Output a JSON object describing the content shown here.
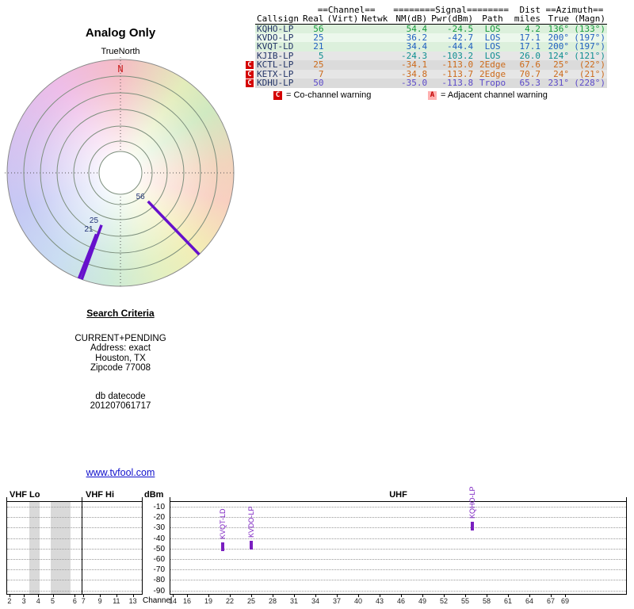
{
  "title": "Analog Only",
  "radar": {
    "true_north_label": "TrueNorth",
    "north_marker": "N",
    "spoke_color": "#6610cc",
    "label_color": "#223377",
    "spokes": [
      {
        "channel": "56",
        "azimuth_deg": 136,
        "inner_r": 50,
        "outer_r": 143
      },
      {
        "channel": "25",
        "azimuth_deg": 200,
        "inner_r": 70,
        "outer_r": 143
      },
      {
        "channel": "21",
        "azimuth_deg": 201.5,
        "inner_r": 83,
        "outer_r": 143
      }
    ]
  },
  "table": {
    "group_channel": "==Channel==",
    "group_signal": "========Signal========",
    "group_dist": "Dist",
    "group_azimuth": "==Azimuth==",
    "columns": [
      "Callsign",
      "Real",
      "(Virt)",
      "Netwk",
      "NM(dB)",
      "Pwr(dBm)",
      "Path",
      "miles",
      "True",
      "(Magn)"
    ],
    "rows": [
      {
        "callsign": "KQHO-LP",
        "real": "56",
        "virt": "",
        "netwk": "",
        "nm": "54.4",
        "pwr": "-24.5",
        "path": "LOS",
        "miles": "4.2",
        "true": "136°",
        "magn": "(133°)",
        "color": "#169a3c",
        "bg": "#dcf0dc",
        "marker": ""
      },
      {
        "callsign": "KVDO-LP",
        "real": "25",
        "virt": "",
        "netwk": "",
        "nm": "36.2",
        "pwr": "-42.7",
        "path": "LOS",
        "miles": "17.1",
        "true": "200°",
        "magn": "(197°)",
        "color": "#2060c0",
        "bg": "#ecf8ec",
        "marker": ""
      },
      {
        "callsign": "KVQT-LD",
        "real": "21",
        "virt": "",
        "netwk": "",
        "nm": "34.4",
        "pwr": "-44.4",
        "path": "LOS",
        "miles": "17.1",
        "true": "200°",
        "magn": "(197°)",
        "color": "#2060c0",
        "bg": "#dcf0dc",
        "marker": ""
      },
      {
        "callsign": "KJIB-LP",
        "real": "5",
        "virt": "",
        "netwk": "",
        "nm": "-24.3",
        "pwr": "-103.2",
        "path": "LOS",
        "miles": "26.0",
        "true": "124°",
        "magn": "(121°)",
        "color": "#0d8f8f",
        "bg": "#e6e6e6",
        "marker": ""
      },
      {
        "callsign": "KCTL-LP",
        "real": "25",
        "virt": "",
        "netwk": "",
        "nm": "-34.1",
        "pwr": "-113.0",
        "path": "2Edge",
        "miles": "67.6",
        "true": "25°",
        "magn": "(22°)",
        "color": "#cc6a1a",
        "bg": "#dbdbdb",
        "marker": "C"
      },
      {
        "callsign": "KETX-LP",
        "real": "7",
        "virt": "",
        "netwk": "",
        "nm": "-34.8",
        "pwr": "-113.7",
        "path": "2Edge",
        "miles": "70.7",
        "true": "24°",
        "magn": "(21°)",
        "color": "#cc6a1a",
        "bg": "#e6e6e6",
        "marker": "C"
      },
      {
        "callsign": "KDHU-LP",
        "real": "50",
        "virt": "",
        "netwk": "",
        "nm": "-35.0",
        "pwr": "-113.8",
        "path": "Tropo",
        "miles": "65.3",
        "true": "231°",
        "magn": "(228°)",
        "color": "#5b49c9",
        "bg": "#dbdbdb",
        "marker": "C"
      }
    ],
    "legend_co_symbol": "C",
    "legend_co_text": "= Co-channel warning",
    "legend_adj_symbol": "A",
    "legend_adj_text": "= Adjacent channel warning"
  },
  "search": {
    "heading": "Search Criteria",
    "lines": [
      "CURRENT+PENDING",
      "Address: exact",
      "Houston, TX",
      "Zipcode 77008"
    ],
    "db_label": "db datecode",
    "db_value": "201207061717"
  },
  "link_text": "www.tvfool.com",
  "chart_data": {
    "type": "scatter",
    "title": "Analog TV signal spectrum",
    "xlabel": "Channel",
    "ylabel": "dBm",
    "ylim": [
      -95,
      -5
    ],
    "yticks": [
      -10,
      -20,
      -30,
      -40,
      -50,
      -60,
      -70,
      -80,
      -90
    ],
    "grid": true,
    "bands": [
      {
        "name": "VHF Lo",
        "channels": [
          2,
          3,
          4,
          5,
          6
        ],
        "positions_pct": [
          4,
          23,
          42,
          61,
          90
        ]
      },
      {
        "name": "VHF Hi",
        "channels": [
          7,
          9,
          11,
          13
        ],
        "positions_pct": [
          3,
          30,
          57,
          84
        ]
      },
      {
        "name": "UHF",
        "channels": [
          14,
          16,
          19,
          22,
          25,
          28,
          31,
          34,
          37,
          40,
          43,
          46,
          49,
          52,
          55,
          58,
          61,
          64,
          67,
          69
        ]
      }
    ],
    "shaded_vhf_lo_pct": [
      [
        30,
        44
      ],
      [
        58,
        85
      ]
    ],
    "signals": [
      {
        "callsign": "KVQT-LD",
        "channel": 21,
        "power_dbm": -44.4
      },
      {
        "callsign": "KVDO-LP",
        "channel": 25,
        "power_dbm": -42.7
      },
      {
        "callsign": "KQHO-LP",
        "channel": 56,
        "power_dbm": -24.5
      }
    ]
  }
}
